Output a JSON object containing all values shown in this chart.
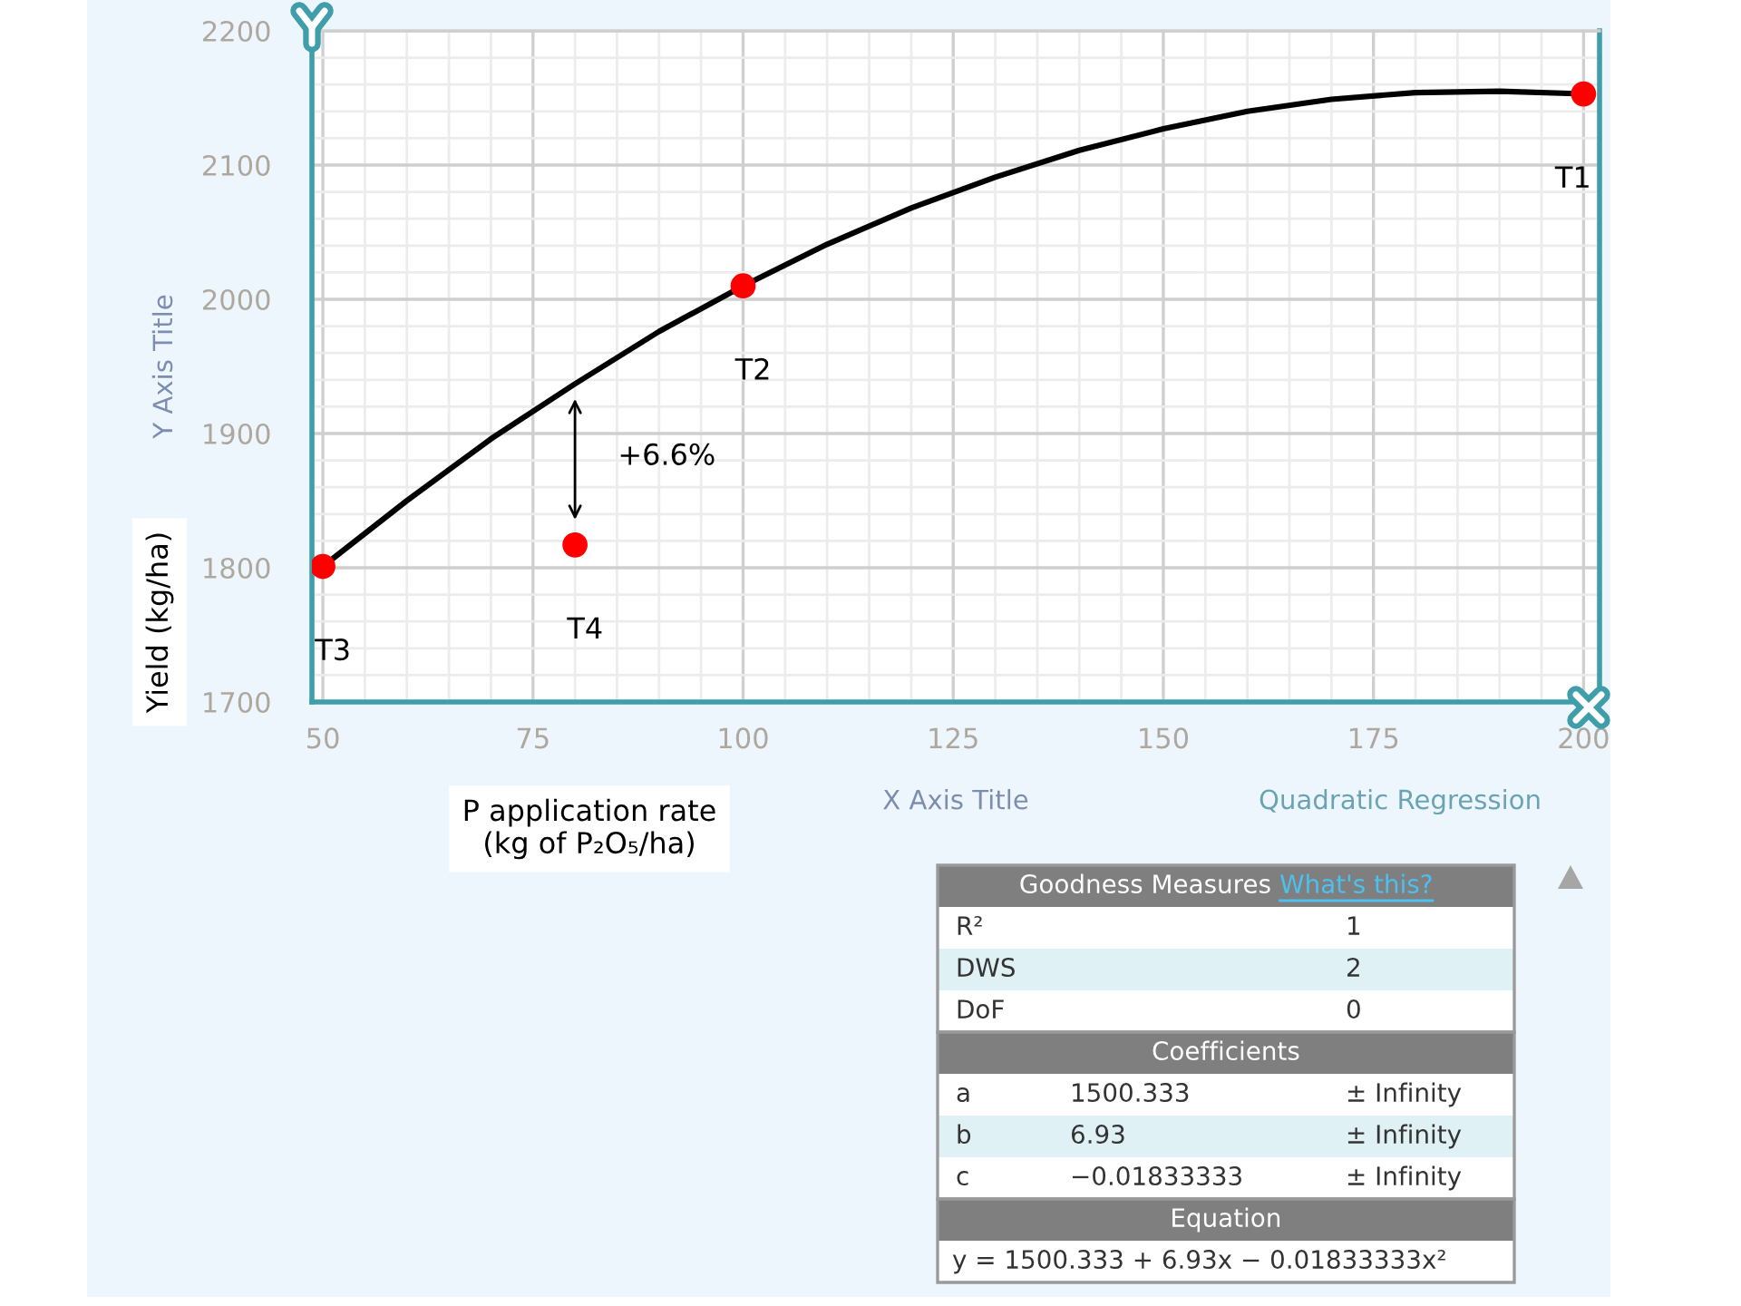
{
  "chart_data": [
    {
      "type": "scatter",
      "xlabel": "X Axis Title",
      "ylabel": "Y Axis Title",
      "annotations": [
        "Yield (kg/ha)",
        "P application rate\n(kg of P₂O₅/ha)",
        "Quadratic Regression",
        "+6.6%"
      ],
      "xlim": [
        48.7,
        201.9
      ],
      "xticks": [
        50,
        75,
        100,
        125,
        150,
        175,
        200
      ],
      "ylim": [
        1700,
        2200
      ],
      "yticks": [
        1700,
        1800,
        1900,
        2000,
        2100,
        2200
      ],
      "grid": true,
      "series": [
        {
          "type": "line",
          "x": [
            50,
            60,
            70,
            80,
            90,
            100,
            110,
            120,
            130,
            140,
            150,
            160,
            170,
            180,
            190,
            200
          ],
          "values": [
            1801,
            1850,
            1896,
            1937,
            1976,
            2010,
            2041,
            2068,
            2091,
            2111,
            2127,
            2140,
            2149,
            2154,
            2155,
            2153
          ],
          "color": "#000000"
        },
        {
          "type": "scatter",
          "x": [
            50,
            80,
            100,
            200
          ],
          "values": [
            1801,
            1817,
            2010,
            2153
          ],
          "color": "#ff0000",
          "marker": "circle",
          "value_labels": [
            "T3",
            "T4",
            "T2",
            "T1"
          ]
        }
      ]
    },
    {
      "type": "other",
      "title": "Goodness Measures",
      "subtitle": "What's this?",
      "y_categories": [
        "R²",
        "DWS",
        "DoF"
      ],
      "cell_labels": [
        [
          "1"
        ],
        [
          "2"
        ],
        [
          "0"
        ]
      ]
    },
    {
      "type": "other",
      "title": "Coefficients",
      "y_categories": [
        "a",
        "b",
        "c"
      ],
      "cell_labels": [
        [
          "1500.333",
          "± Infinity"
        ],
        [
          "6.93",
          "± Infinity"
        ],
        [
          "−0.01833333",
          "± Infinity"
        ]
      ]
    },
    {
      "type": "other",
      "title": "Equation",
      "annotations": [
        "y = 1500.333 + 6.93x − 0.01833333x²"
      ]
    }
  ]
}
